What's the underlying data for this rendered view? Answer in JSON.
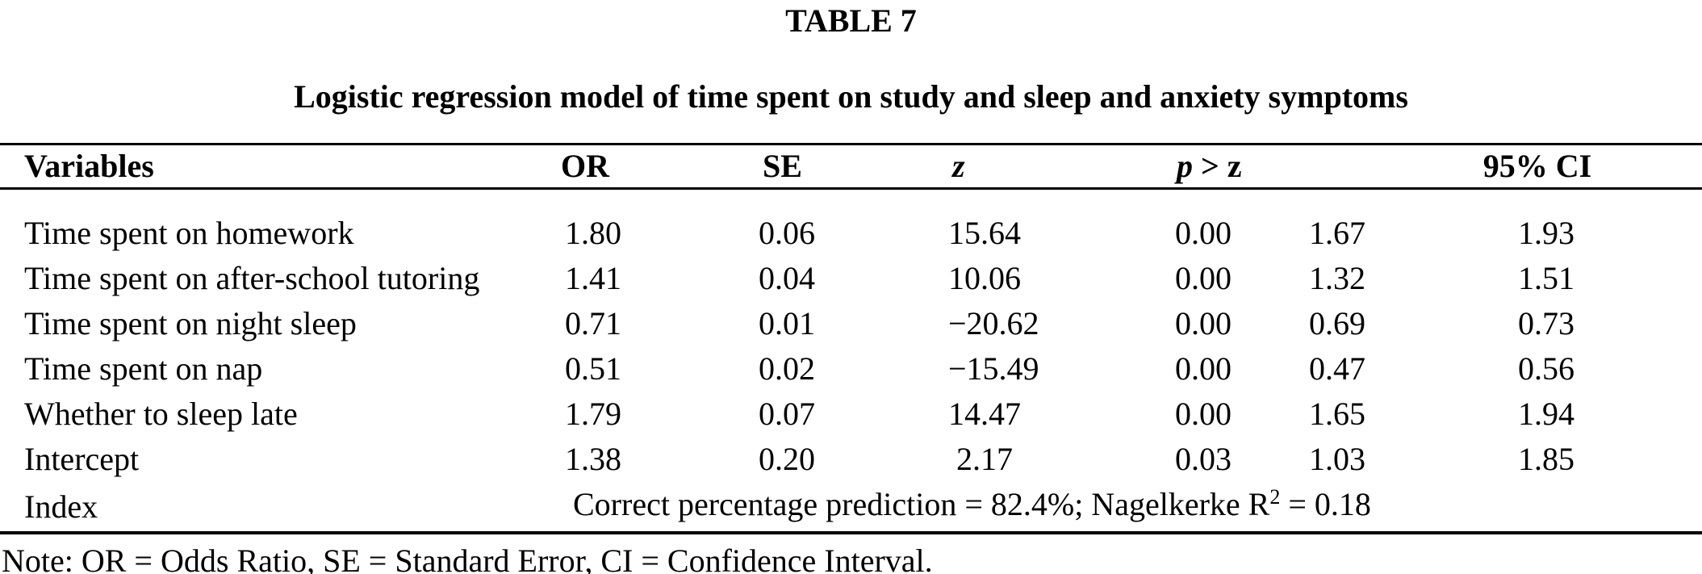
{
  "colors": {
    "text": "#000000",
    "background": "#ffffff"
  },
  "table_label": "TABLE 7",
  "title": "Logistic regression model of time spent on study and sleep and anxiety symptoms",
  "header": {
    "variables": "Variables",
    "or": "OR",
    "se": "SE",
    "z": "z",
    "p": "p",
    "p_suffix": " > z",
    "ci": "95% CI"
  },
  "rows": [
    {
      "variable": "Time spent on homework",
      "or": "1.80",
      "se": "0.06",
      "z": "15.64",
      "p": "0.00",
      "ci_low": "1.67",
      "ci_high": "1.93"
    },
    {
      "variable": "Time spent on after-school tutoring",
      "or": "1.41",
      "se": "0.04",
      "z": "10.06",
      "p": "0.00",
      "ci_low": "1.32",
      "ci_high": "1.51"
    },
    {
      "variable": "Time spent on night sleep",
      "or": "0.71",
      "se": "0.01",
      "z": "−20.62",
      "p": "0.00",
      "ci_low": "0.69",
      "ci_high": "0.73"
    },
    {
      "variable": "Time spent on nap",
      "or": "0.51",
      "se": "0.02",
      "z": "−15.49",
      "p": "0.00",
      "ci_low": "0.47",
      "ci_high": "0.56"
    },
    {
      "variable": "Whether to sleep late",
      "or": "1.79",
      "se": "0.07",
      "z": "14.47",
      "p": "0.00",
      "ci_low": "1.65",
      "ci_high": "1.94"
    },
    {
      "variable": "Intercept",
      "or": "1.38",
      "se": "0.20",
      "z": "2.17",
      "p": "0.03",
      "ci_low": "1.03",
      "ci_high": "1.85"
    }
  ],
  "index_row": {
    "label": "Index",
    "text": "Correct percentage prediction = 82.4%; Nagelkerke R",
    "sup": "2",
    "suffix": " = 0.18"
  },
  "note": "Note: OR = Odds Ratio, SE = Standard Error, CI = Confidence Interval."
}
